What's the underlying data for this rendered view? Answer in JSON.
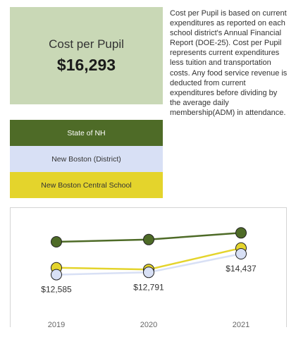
{
  "kpi": {
    "label": "Cost per Pupil",
    "value": "$16,293"
  },
  "description": "Cost per Pupil is based on current expenditures as reported on each school district's Annual Financial Report (DOE-25). Cost per Pupil represents current expenditures less tuition and transportation costs. Any food service revenue is deducted from current expenditures before dividing by the average daily membership(ADM) in attendance.",
  "legend": [
    {
      "label": "State of NH",
      "bg": "#4e6b27",
      "text_color": "#ffffff"
    },
    {
      "label": "New Boston (District)",
      "bg": "#d8e0f5",
      "text_color": "#333333"
    },
    {
      "label": "New Boston Central School",
      "bg": "#e4d42c",
      "text_color": "#333333"
    }
  ],
  "chart_data": {
    "type": "line",
    "categories": [
      "2019",
      "2020",
      "2021"
    ],
    "series": [
      {
        "name": "State of NH",
        "color": "#4e6b27",
        "values": [
          15500,
          15700,
          16293
        ]
      },
      {
        "name": "New Boston Central School",
        "color": "#e4d42c",
        "values": [
          13200,
          13050,
          14950
        ]
      },
      {
        "name": "New Boston (District)",
        "color": "#d8e0f5",
        "values": [
          12585,
          12791,
          14437
        ]
      }
    ],
    "data_labels": [
      "$12,585",
      "$12,791",
      "$14,437"
    ],
    "ylim": [
      8500,
      17500
    ],
    "grid": false
  }
}
